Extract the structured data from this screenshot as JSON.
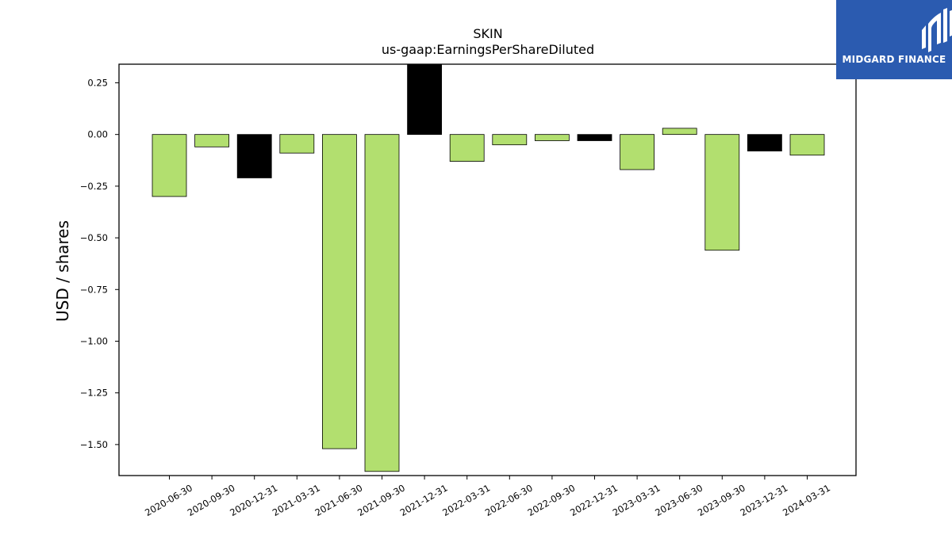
{
  "chart_data": {
    "type": "bar",
    "title": "SKIN",
    "subtitle": "us-gaap:EarningsPerShareDiluted",
    "xlabel": "",
    "ylabel": "USD / shares",
    "ylim": [
      -1.65,
      0.34
    ],
    "yticks": [
      0.25,
      0.0,
      -0.25,
      -0.5,
      -0.75,
      -1.0,
      -1.25,
      -1.5
    ],
    "ytick_labels": [
      "0.25",
      "0.00",
      "−0.25",
      "−0.50",
      "−0.75",
      "−1.00",
      "−1.25",
      "−1.50"
    ],
    "categories": [
      "2020-06-30",
      "2020-09-30",
      "2020-12-31",
      "2021-03-31",
      "2021-06-30",
      "2021-09-30",
      "2021-12-31",
      "2022-03-31",
      "2022-06-30",
      "2022-09-30",
      "2022-12-31",
      "2023-03-31",
      "2023-06-30",
      "2023-09-30",
      "2023-12-31",
      "2024-03-31"
    ],
    "values": [
      -0.3,
      -0.06,
      -0.21,
      -0.09,
      -1.52,
      -1.63,
      0.34,
      -0.13,
      -0.05,
      -0.03,
      -0.03,
      -0.17,
      0.03,
      -0.56,
      -0.08,
      -0.1
    ],
    "bar_colors": [
      "#b2df6f",
      "#b2df6f",
      "#000000",
      "#b2df6f",
      "#b2df6f",
      "#b2df6f",
      "#000000",
      "#b2df6f",
      "#b2df6f",
      "#b2df6f",
      "#000000",
      "#b2df6f",
      "#b2df6f",
      "#b2df6f",
      "#000000",
      "#b2df6f"
    ],
    "grid": false
  },
  "logo": {
    "text": "MIDGARD FINANCE",
    "background": "#2b5bb0",
    "icon": "midgard-logo-mark-icon"
  }
}
